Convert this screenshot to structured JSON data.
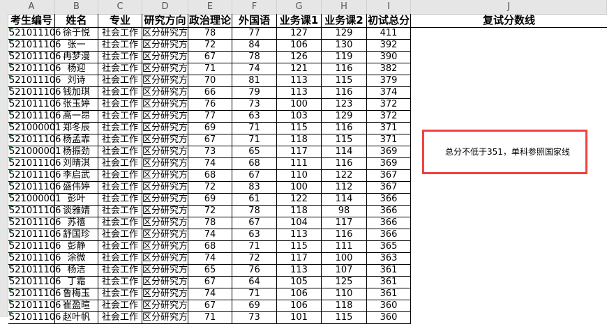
{
  "column_letters": [
    "A",
    "B",
    "C",
    "D",
    "E",
    "F",
    "G",
    "H",
    "I",
    "J"
  ],
  "headers": [
    "考生编号",
    "姓名",
    "专业",
    "研究方向",
    "政治理论",
    "外国语",
    "业务课1",
    "业务课2",
    "初试总分"
  ],
  "j_header": "复试分数线",
  "note": "总分不低于351，单科参照国家线",
  "note_border_color": "#f04040",
  "rows": [
    [
      "521011106",
      "徐于悦",
      "社会工作",
      "区分研究方",
      "78",
      "77",
      "127",
      "129",
      "411"
    ],
    [
      "521011106",
      "张一",
      "社会工作",
      "区分研究方",
      "72",
      "84",
      "106",
      "130",
      "392"
    ],
    [
      "521011106",
      "冉梦漫",
      "社会工作",
      "区分研究方",
      "67",
      "78",
      "126",
      "119",
      "390"
    ],
    [
      "521011106",
      "杨迎",
      "社会工作",
      "区分研究方",
      "71",
      "74",
      "121",
      "116",
      "382"
    ],
    [
      "521011106",
      "刘诗",
      "社会工作",
      "区分研究方",
      "70",
      "81",
      "113",
      "115",
      "379"
    ],
    [
      "521011106",
      "钱加琪",
      "社会工作",
      "区分研究方",
      "66",
      "79",
      "113",
      "116",
      "374"
    ],
    [
      "521011106",
      "张玉婷",
      "社会工作",
      "区分研究方",
      "76",
      "73",
      "100",
      "123",
      "372"
    ],
    [
      "521011106",
      "高一昂",
      "社会工作",
      "区分研究方",
      "77",
      "63",
      "103",
      "129",
      "372"
    ],
    [
      "521000001",
      "郑冬辰",
      "社会工作",
      "区分研究方",
      "69",
      "71",
      "115",
      "116",
      "371"
    ],
    [
      "521011106",
      "杨孟霏",
      "社会工作",
      "区分研究方",
      "67",
      "71",
      "118",
      "115",
      "371"
    ],
    [
      "521000001",
      "杨振劲",
      "社会工作",
      "区分研究方",
      "73",
      "65",
      "117",
      "114",
      "369"
    ],
    [
      "521011106",
      "刘晴淇",
      "社会工作",
      "区分研究方",
      "74",
      "68",
      "111",
      "116",
      "369"
    ],
    [
      "521011106",
      "李启武",
      "社会工作",
      "区分研究方",
      "68",
      "67",
      "110",
      "122",
      "367"
    ],
    [
      "521011106",
      "盛伟婷",
      "社会工作",
      "区分研究方",
      "72",
      "83",
      "100",
      "112",
      "367"
    ],
    [
      "521000001",
      "彭叶",
      "社会工作",
      "区分研究方",
      "69",
      "61",
      "122",
      "114",
      "366"
    ],
    [
      "521011106",
      "谈雅婧",
      "社会工作",
      "区分研究方",
      "72",
      "78",
      "118",
      "98",
      "366"
    ],
    [
      "521011106",
      "苏禧",
      "社会工作",
      "区分研究方",
      "78",
      "67",
      "104",
      "117",
      "366"
    ],
    [
      "521011106",
      "舒国珍",
      "社会工作",
      "区分研究方",
      "74",
      "63",
      "113",
      "116",
      "366"
    ],
    [
      "521011106",
      "彭静",
      "社会工作",
      "区分研究方",
      "68",
      "71",
      "115",
      "111",
      "365"
    ],
    [
      "521011106",
      "涂微",
      "社会工作",
      "区分研究方",
      "74",
      "72",
      "117",
      "100",
      "363"
    ],
    [
      "521011106",
      "杨洁",
      "社会工作",
      "区分研究方",
      "65",
      "76",
      "113",
      "107",
      "361"
    ],
    [
      "521011106",
      "丁霜",
      "社会工作",
      "区分研究方",
      "67",
      "64",
      "105",
      "125",
      "361"
    ],
    [
      "521011106",
      "鲁梅玉",
      "社会工作",
      "区分研究方",
      "74",
      "71",
      "106",
      "110",
      "361"
    ],
    [
      "521011106",
      "崔盈暄",
      "社会工作",
      "区分研究方",
      "67",
      "69",
      "106",
      "118",
      "360"
    ],
    [
      "521011106",
      "赵叶帆",
      "社会工作",
      "区分研究方",
      "71",
      "73",
      "101",
      "115",
      "360"
    ]
  ]
}
